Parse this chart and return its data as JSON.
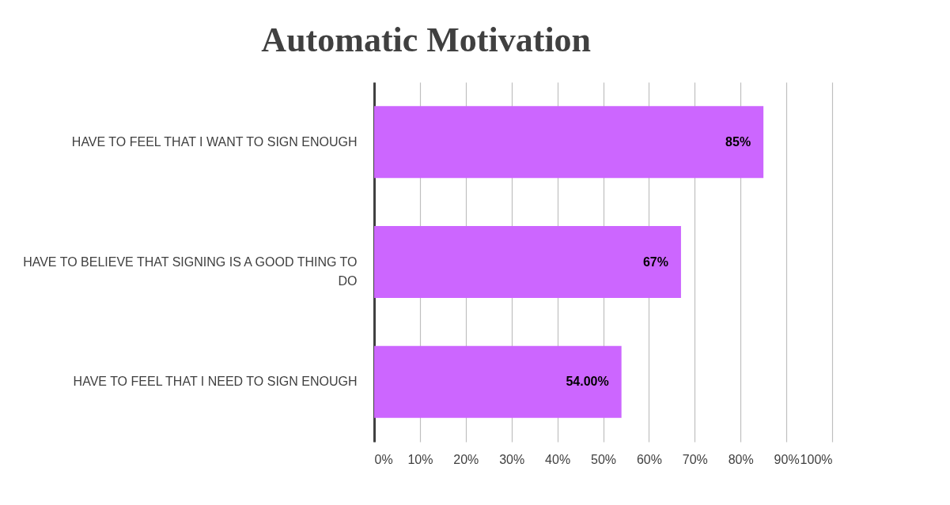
{
  "chart_data": {
    "type": "bar",
    "orientation": "horizontal",
    "title": "Automatic Motivation",
    "categories": [
      "HAVE TO FEEL THAT I WANT TO SIGN ENOUGH",
      "HAVE TO BELIEVE THAT SIGNING IS A GOOD THING TO DO",
      "HAVE TO FEEL THAT I NEED TO SIGN ENOUGH"
    ],
    "values": [
      85,
      67,
      54
    ],
    "value_labels": [
      "85%",
      "67%",
      "54.00%"
    ],
    "color": "#cc66ff",
    "xlim": [
      0,
      100
    ],
    "xticks": [
      {
        "value": 0,
        "label": "0%"
      },
      {
        "value": 10,
        "label": "10%"
      },
      {
        "value": 20,
        "label": "20%"
      },
      {
        "value": 30,
        "label": "30%"
      },
      {
        "value": 40,
        "label": "40%"
      },
      {
        "value": 50,
        "label": "50%"
      },
      {
        "value": 60,
        "label": "60%"
      },
      {
        "value": 70,
        "label": "70%"
      },
      {
        "value": 80,
        "label": "80%"
      },
      {
        "value": 90,
        "label": "90%"
      },
      {
        "value": 100,
        "label": "100%"
      }
    ],
    "grid": "x"
  }
}
